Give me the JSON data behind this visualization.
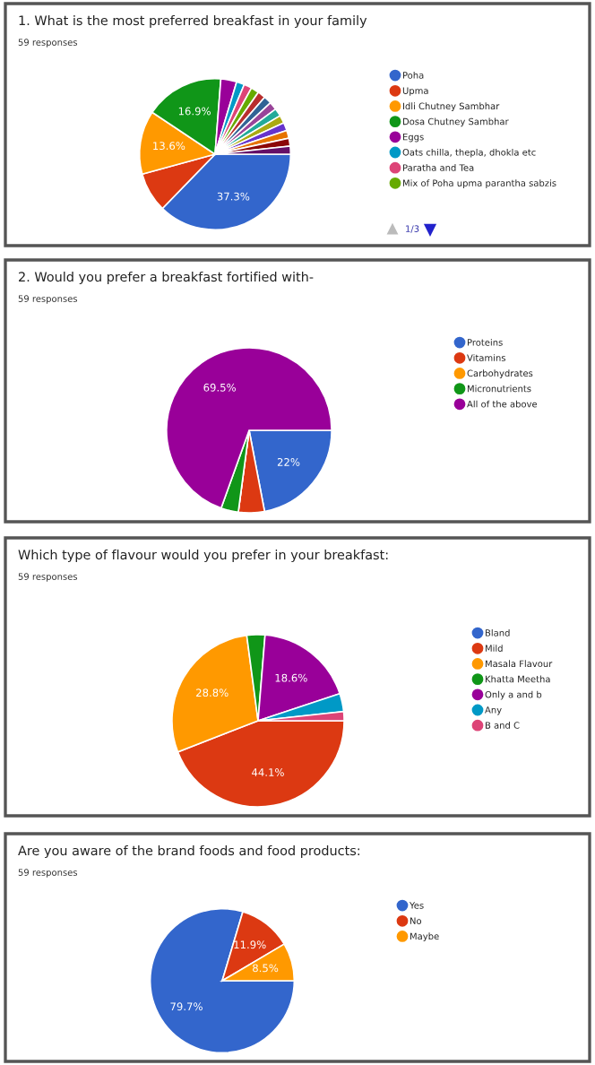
{
  "chart_data": [
    {
      "type": "pie",
      "title": "1. What is the most preferred breakfast in your family",
      "subtitle": "59 responses",
      "legend": "right",
      "annotations": [
        "1/3"
      ],
      "categories": [
        "Poha",
        "Upma",
        "Idli Chutney Sambhar",
        "Dosa Chutney Sambhar",
        "Eggs",
        "Oats chilla, thepla, dhokla etc",
        "Paratha and Tea",
        "Mix of Poha upma parantha sabzis",
        null,
        null,
        null,
        null,
        null,
        null,
        null,
        null,
        null
      ],
      "values": [
        37.3,
        8.5,
        13.6,
        16.9,
        3.4,
        1.7,
        1.7,
        1.7,
        1.7,
        1.7,
        1.7,
        1.7,
        1.7,
        1.7,
        1.7,
        1.7,
        1.7
      ],
      "value_labels": [
        "37.3%",
        null,
        "13.6%",
        "16.9%",
        null,
        null,
        null,
        null,
        null,
        null,
        null,
        null,
        null,
        null,
        null,
        null,
        null
      ],
      "colors": [
        "#3366cc",
        "#dc3912",
        "#ff9900",
        "#109618",
        "#990099",
        "#0099c6",
        "#dd4477",
        "#66aa00",
        "#b82e2e",
        "#316395",
        "#994499",
        "#22aa99",
        "#aaaa11",
        "#6633cc",
        "#e67300",
        "#8b0707",
        "#651067"
      ]
    },
    {
      "type": "pie",
      "title": "2. Would you prefer a breakfast fortified with-",
      "subtitle": "59 responses",
      "legend": "right",
      "categories": [
        "Proteins",
        "Vitamins",
        "Carbohydrates",
        "Micronutrients",
        "All of the above"
      ],
      "values": [
        22,
        5.1,
        0,
        3.4,
        69.5
      ],
      "value_labels": [
        "22%",
        null,
        null,
        null,
        "69.5%"
      ],
      "colors": [
        "#3366cc",
        "#dc3912",
        "#ff9900",
        "#109618",
        "#990099"
      ]
    },
    {
      "type": "pie",
      "title": "Which type of flavour would you prefer in your breakfast:",
      "subtitle": "59 responses",
      "legend": "right",
      "categories": [
        "Bland",
        "Mild",
        "Masala Flavour",
        "Khatta Meetha",
        "Only a and b",
        "Any",
        "B and C"
      ],
      "values": [
        0,
        44.1,
        28.8,
        3.4,
        18.6,
        3.4,
        1.7
      ],
      "value_labels": [
        null,
        "44.1%",
        "28.8%",
        null,
        "18.6%",
        null,
        null
      ],
      "colors": [
        "#3366cc",
        "#dc3912",
        "#ff9900",
        "#109618",
        "#990099",
        "#0099c6",
        "#dd4477"
      ]
    },
    {
      "type": "pie",
      "title": "Are you aware of the brand foods and food products:",
      "subtitle": "59 responses",
      "legend": "right",
      "categories": [
        "Yes",
        "No",
        "Maybe"
      ],
      "values": [
        79.7,
        11.9,
        8.5
      ],
      "value_labels": [
        "79.7%",
        "11.9%",
        "8.5%"
      ],
      "colors": [
        "#3366cc",
        "#dc3912",
        "#ff9900"
      ]
    }
  ]
}
